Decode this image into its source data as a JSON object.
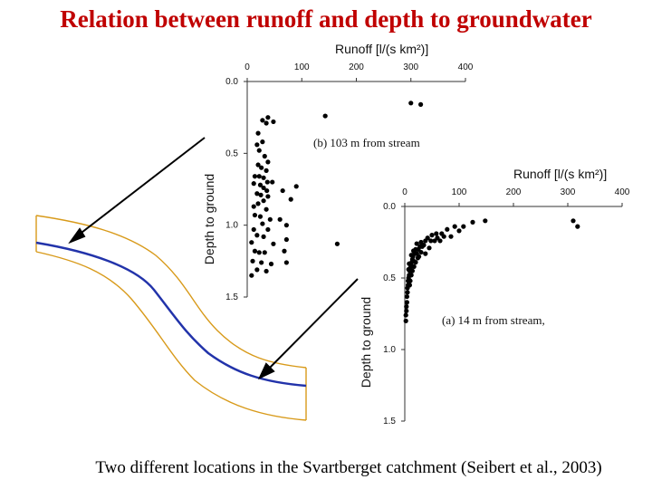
{
  "title": "Relation between runoff and depth to groundwater",
  "caption": "Two different locations in the Svartberget catchment (Seibert et al., 2003)",
  "colors": {
    "title": "#c00000",
    "stream_line": "#2233aa",
    "valley_outline": "#d89a1a",
    "points": "#000000"
  },
  "chart_data": [
    {
      "type": "scatter",
      "panel_label": "(b) 103 m from stream",
      "xlabel": "Runoff [l/(s km²)]",
      "ylabel": "Depth to ground",
      "x_ticks": [
        "0",
        "100",
        "200",
        "300",
        "400"
      ],
      "y_ticks": [
        "0.0",
        "0.5",
        "1.0",
        "1.5"
      ],
      "xlim": [
        0,
        400
      ],
      "ylim": [
        0,
        1.5
      ],
      "x_axis_position": "top",
      "y_inverted": true,
      "points": [
        [
          300,
          0.15
        ],
        [
          318,
          0.16
        ],
        [
          143,
          0.24
        ],
        [
          38,
          0.25
        ],
        [
          28,
          0.27
        ],
        [
          35,
          0.29
        ],
        [
          48,
          0.28
        ],
        [
          20,
          0.36
        ],
        [
          28,
          0.42
        ],
        [
          18,
          0.44
        ],
        [
          22,
          0.48
        ],
        [
          32,
          0.52
        ],
        [
          38,
          0.56
        ],
        [
          20,
          0.58
        ],
        [
          26,
          0.6
        ],
        [
          35,
          0.62
        ],
        [
          14,
          0.66
        ],
        [
          22,
          0.66
        ],
        [
          30,
          0.67
        ],
        [
          37,
          0.7
        ],
        [
          46,
          0.7
        ],
        [
          12,
          0.71
        ],
        [
          24,
          0.72
        ],
        [
          30,
          0.74
        ],
        [
          36,
          0.76
        ],
        [
          90,
          0.73
        ],
        [
          65,
          0.76
        ],
        [
          18,
          0.78
        ],
        [
          25,
          0.79
        ],
        [
          38,
          0.8
        ],
        [
          30,
          0.83
        ],
        [
          20,
          0.85
        ],
        [
          80,
          0.82
        ],
        [
          12,
          0.87
        ],
        [
          35,
          0.89
        ],
        [
          14,
          0.93
        ],
        [
          24,
          0.94
        ],
        [
          42,
          0.96
        ],
        [
          60,
          0.96
        ],
        [
          28,
          0.99
        ],
        [
          72,
          1.0
        ],
        [
          12,
          1.03
        ],
        [
          38,
          1.03
        ],
        [
          18,
          1.07
        ],
        [
          30,
          1.08
        ],
        [
          72,
          1.1
        ],
        [
          8,
          1.12
        ],
        [
          48,
          1.13
        ],
        [
          165,
          1.13
        ],
        [
          14,
          1.18
        ],
        [
          22,
          1.19
        ],
        [
          32,
          1.19
        ],
        [
          68,
          1.18
        ],
        [
          10,
          1.25
        ],
        [
          26,
          1.26
        ],
        [
          44,
          1.27
        ],
        [
          72,
          1.26
        ],
        [
          18,
          1.31
        ],
        [
          35,
          1.32
        ],
        [
          8,
          1.35
        ]
      ]
    },
    {
      "type": "scatter",
      "panel_label": "(a) 14 m from stream,",
      "xlabel": "Runoff [l/(s km²)]",
      "ylabel": "Depth to ground",
      "x_ticks": [
        "0",
        "100",
        "200",
        "300",
        "400"
      ],
      "y_ticks": [
        "0.0",
        "0.5",
        "1.0",
        "1.5"
      ],
      "xlim": [
        0,
        400
      ],
      "ylim": [
        0,
        1.5
      ],
      "x_axis_position": "top",
      "y_inverted": true,
      "points": [
        [
          310,
          0.1
        ],
        [
          318,
          0.14
        ],
        [
          148,
          0.1
        ],
        [
          125,
          0.11
        ],
        [
          92,
          0.14
        ],
        [
          108,
          0.14
        ],
        [
          78,
          0.16
        ],
        [
          68,
          0.19
        ],
        [
          60,
          0.22
        ],
        [
          55,
          0.24
        ],
        [
          48,
          0.24
        ],
        [
          42,
          0.22
        ],
        [
          38,
          0.24
        ],
        [
          35,
          0.27
        ],
        [
          30,
          0.25
        ],
        [
          28,
          0.28
        ],
        [
          25,
          0.3
        ],
        [
          22,
          0.26
        ],
        [
          20,
          0.3
        ],
        [
          18,
          0.33
        ],
        [
          16,
          0.31
        ],
        [
          15,
          0.35
        ],
        [
          14,
          0.37
        ],
        [
          13,
          0.39
        ],
        [
          12,
          0.34
        ],
        [
          11,
          0.41
        ],
        [
          10,
          0.43
        ],
        [
          9,
          0.45
        ],
        [
          8,
          0.4
        ],
        [
          8,
          0.48
        ],
        [
          7,
          0.5
        ],
        [
          7,
          0.44
        ],
        [
          6,
          0.52
        ],
        [
          6,
          0.55
        ],
        [
          5,
          0.57
        ],
        [
          5,
          0.6
        ],
        [
          4,
          0.63
        ],
        [
          4,
          0.67
        ],
        [
          3,
          0.7
        ],
        [
          3,
          0.73
        ],
        [
          2,
          0.76
        ],
        [
          2,
          0.8
        ],
        [
          30,
          0.32
        ],
        [
          24,
          0.36
        ],
        [
          20,
          0.39
        ],
        [
          17,
          0.42
        ],
        [
          32,
          0.28
        ],
        [
          45,
          0.29
        ],
        [
          38,
          0.33
        ],
        [
          26,
          0.35
        ],
        [
          50,
          0.2
        ],
        [
          65,
          0.24
        ],
        [
          85,
          0.21
        ],
        [
          100,
          0.17
        ],
        [
          14,
          0.45
        ],
        [
          12,
          0.48
        ],
        [
          10,
          0.52
        ],
        [
          9,
          0.55
        ],
        [
          16,
          0.38
        ],
        [
          22,
          0.33
        ],
        [
          58,
          0.19
        ],
        [
          72,
          0.21
        ]
      ]
    }
  ]
}
